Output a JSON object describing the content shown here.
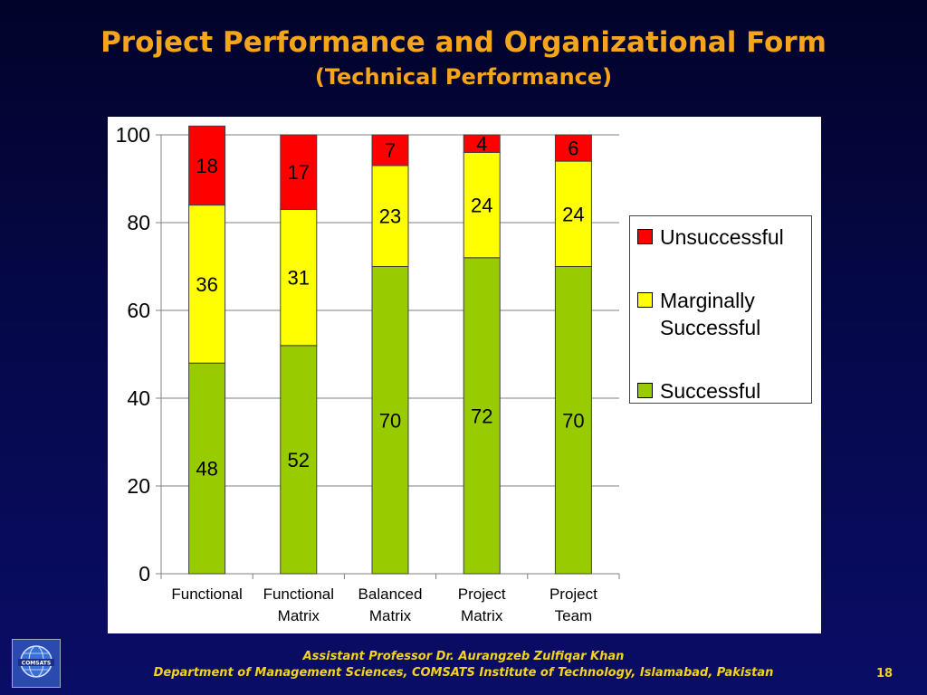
{
  "slide": {
    "title": "Project Performance and Organizational Form",
    "subtitle": "(Technical Performance)",
    "footer_line1": "Assistant Professor Dr. Aurangzeb Zulfiqar Khan",
    "footer_line2": "Department of Management Sciences, COMSATS Institute of Technology, Islamabad, Pakistan",
    "page_number": "18",
    "logo_text": "COMSATS"
  },
  "chart_data": {
    "type": "bar",
    "stacked": true,
    "categories": [
      [
        "Functional"
      ],
      [
        "Functional",
        "Matrix"
      ],
      [
        "Balanced",
        "Matrix"
      ],
      [
        "Project",
        "Matrix"
      ],
      [
        "Project",
        "Team"
      ]
    ],
    "series": [
      {
        "name": "Successful",
        "color": "#99cc00",
        "values": [
          48,
          52,
          70,
          72,
          70
        ]
      },
      {
        "name": "Marginally Successful",
        "color": "#ffff00",
        "values": [
          36,
          31,
          23,
          24,
          24
        ]
      },
      {
        "name": "Unsuccessful",
        "color": "#ff0000",
        "values": [
          18,
          17,
          7,
          4,
          6
        ]
      }
    ],
    "legend": [
      {
        "lines": [
          "Unsuccessful"
        ],
        "color": "#ff0000"
      },
      {
        "lines": [
          "Marginally",
          "Successful"
        ],
        "color": "#ffff00"
      },
      {
        "lines": [
          "Successful"
        ],
        "color": "#99cc00"
      }
    ],
    "legend_position": "right",
    "ylim": [
      0,
      100
    ],
    "yticks": [
      "0",
      "20",
      "40",
      "60",
      "80",
      "100"
    ],
    "grid": true,
    "title": "",
    "xlabel": "",
    "ylabel": ""
  }
}
